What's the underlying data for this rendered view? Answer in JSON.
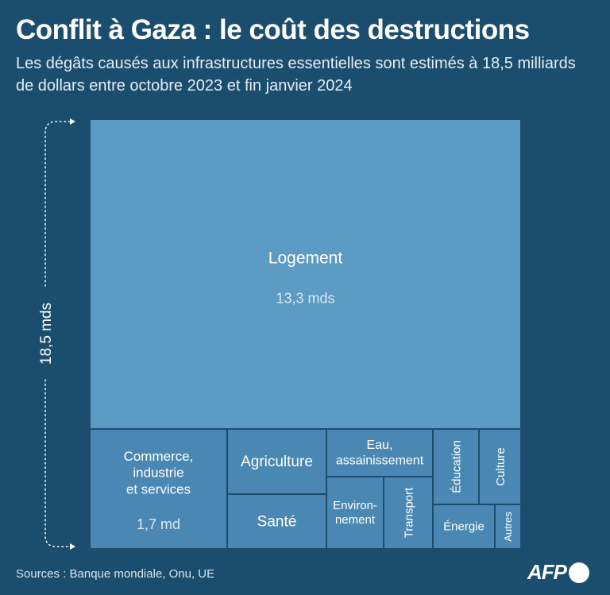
{
  "title": "Conflit à Gaza : le coût des destructions",
  "subtitle": "Les dégâts causés aux infrastructures essentielles sont estimés à 18,5 milliards de dollars entre octobre 2023 et fin janvier 2024",
  "source": "Sources : Banque mondiale, Onu, UE",
  "logo": "AFP",
  "colors": {
    "background": "#1b4e6e",
    "cell_large": "#5b9bc4",
    "cell_small": "#4a88b3",
    "cell_border": "#1b4e6e",
    "text": "#ffffff"
  },
  "chart_data": {
    "type": "treemap",
    "total_label": "18,5 mds",
    "total": 18.5,
    "unit": "milliards de dollars",
    "items": [
      {
        "label": "Logement",
        "value_label": "13,3 mds",
        "value": 13.3
      },
      {
        "label": "Commerce, industrie et services",
        "value_label": "1,7 md",
        "value": 1.7
      },
      {
        "label": "Agriculture",
        "value_label": "",
        "value": null
      },
      {
        "label": "Santé",
        "value_label": "",
        "value": null
      },
      {
        "label": "Eau, assainissement",
        "value_label": "",
        "value": null
      },
      {
        "label": "Environnement",
        "value_label": "",
        "value": null
      },
      {
        "label": "Transport",
        "value_label": "",
        "value": null
      },
      {
        "label": "Éducation",
        "value_label": "",
        "value": null
      },
      {
        "label": "Culture",
        "value_label": "",
        "value": null
      },
      {
        "label": "Énergie",
        "value_label": "",
        "value": null
      },
      {
        "label": "Autres",
        "value_label": "",
        "value": null
      }
    ]
  }
}
